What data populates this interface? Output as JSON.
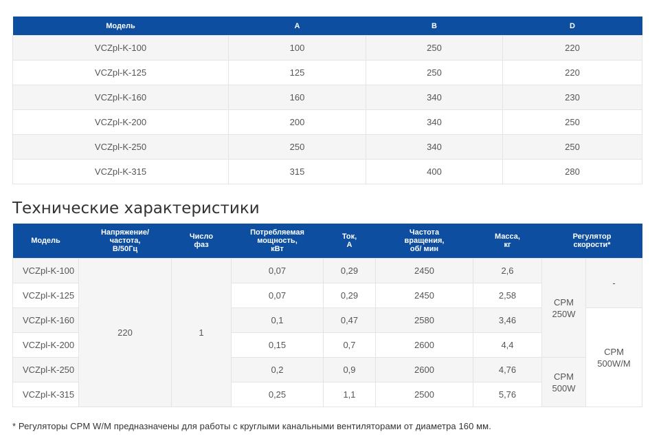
{
  "dimensions_table": {
    "headers": [
      "Модель",
      "A",
      "B",
      "D"
    ],
    "rows": [
      [
        "VCZpl-K-100",
        "100",
        "250",
        "220"
      ],
      [
        "VCZpl-K-125",
        "125",
        "250",
        "220"
      ],
      [
        "VCZpl-K-160",
        "160",
        "340",
        "230"
      ],
      [
        "VCZpl-K-200",
        "200",
        "340",
        "250"
      ],
      [
        "VCZpl-K-250",
        "250",
        "340",
        "250"
      ],
      [
        "VCZpl-K-315",
        "315",
        "400",
        "280"
      ]
    ]
  },
  "specs_title": "Технические характеристики",
  "specs_table": {
    "headers": {
      "model": "Модель",
      "voltage_l1": "Напряжение/",
      "voltage_l2": "частота,",
      "voltage_l3": "В/50Гц",
      "phases_l1": "Число",
      "phases_l2": "фаз",
      "power_l1": "Потребляемая",
      "power_l2": "мощность,",
      "power_l3": "кВт",
      "current_l1": "Ток,",
      "current_l2": "А",
      "speed_l1": "Частота",
      "speed_l2": "вращения,",
      "speed_l3": "об/ мин",
      "mass_l1": "Масса,",
      "mass_l2": "кг",
      "regulator_l1": "Регулятор",
      "regulator_l2": "скорости*"
    },
    "voltage": "220",
    "phases": "1",
    "rows": [
      {
        "model": "VCZpl-K-100",
        "power": "0,07",
        "current": "0,29",
        "speed": "2450",
        "mass": "2,6"
      },
      {
        "model": "VCZpl-K-125",
        "power": "0,07",
        "current": "0,29",
        "speed": "2450",
        "mass": "2,58"
      },
      {
        "model": "VCZpl-K-160",
        "power": "0,1",
        "current": "0,47",
        "speed": "2580",
        "mass": "3,46"
      },
      {
        "model": "VCZpl-K-200",
        "power": "0,15",
        "current": "0,7",
        "speed": "2600",
        "mass": "4,4"
      },
      {
        "model": "VCZpl-K-250",
        "power": "0,2",
        "current": "0,9",
        "speed": "2600",
        "mass": "4,76"
      },
      {
        "model": "VCZpl-K-315",
        "power": "0,25",
        "current": "1,1",
        "speed": "2500",
        "mass": "5,76"
      }
    ],
    "regulator": {
      "a_l1": "CPM",
      "a_l2": "250W",
      "b_l1": "CPM",
      "b_l2": "500W",
      "c": "-",
      "d_l1": "CPM",
      "d_l2": "500W/M"
    }
  },
  "footnote": "* Регуляторы CPM W/M предназначены для работы с круглыми канальными вентиляторами от диаметра 160 мм.",
  "colors": {
    "header_bg": "#0d4ea1",
    "stripe_bg": "#f5f5f5",
    "border": "#e4e4e4"
  }
}
